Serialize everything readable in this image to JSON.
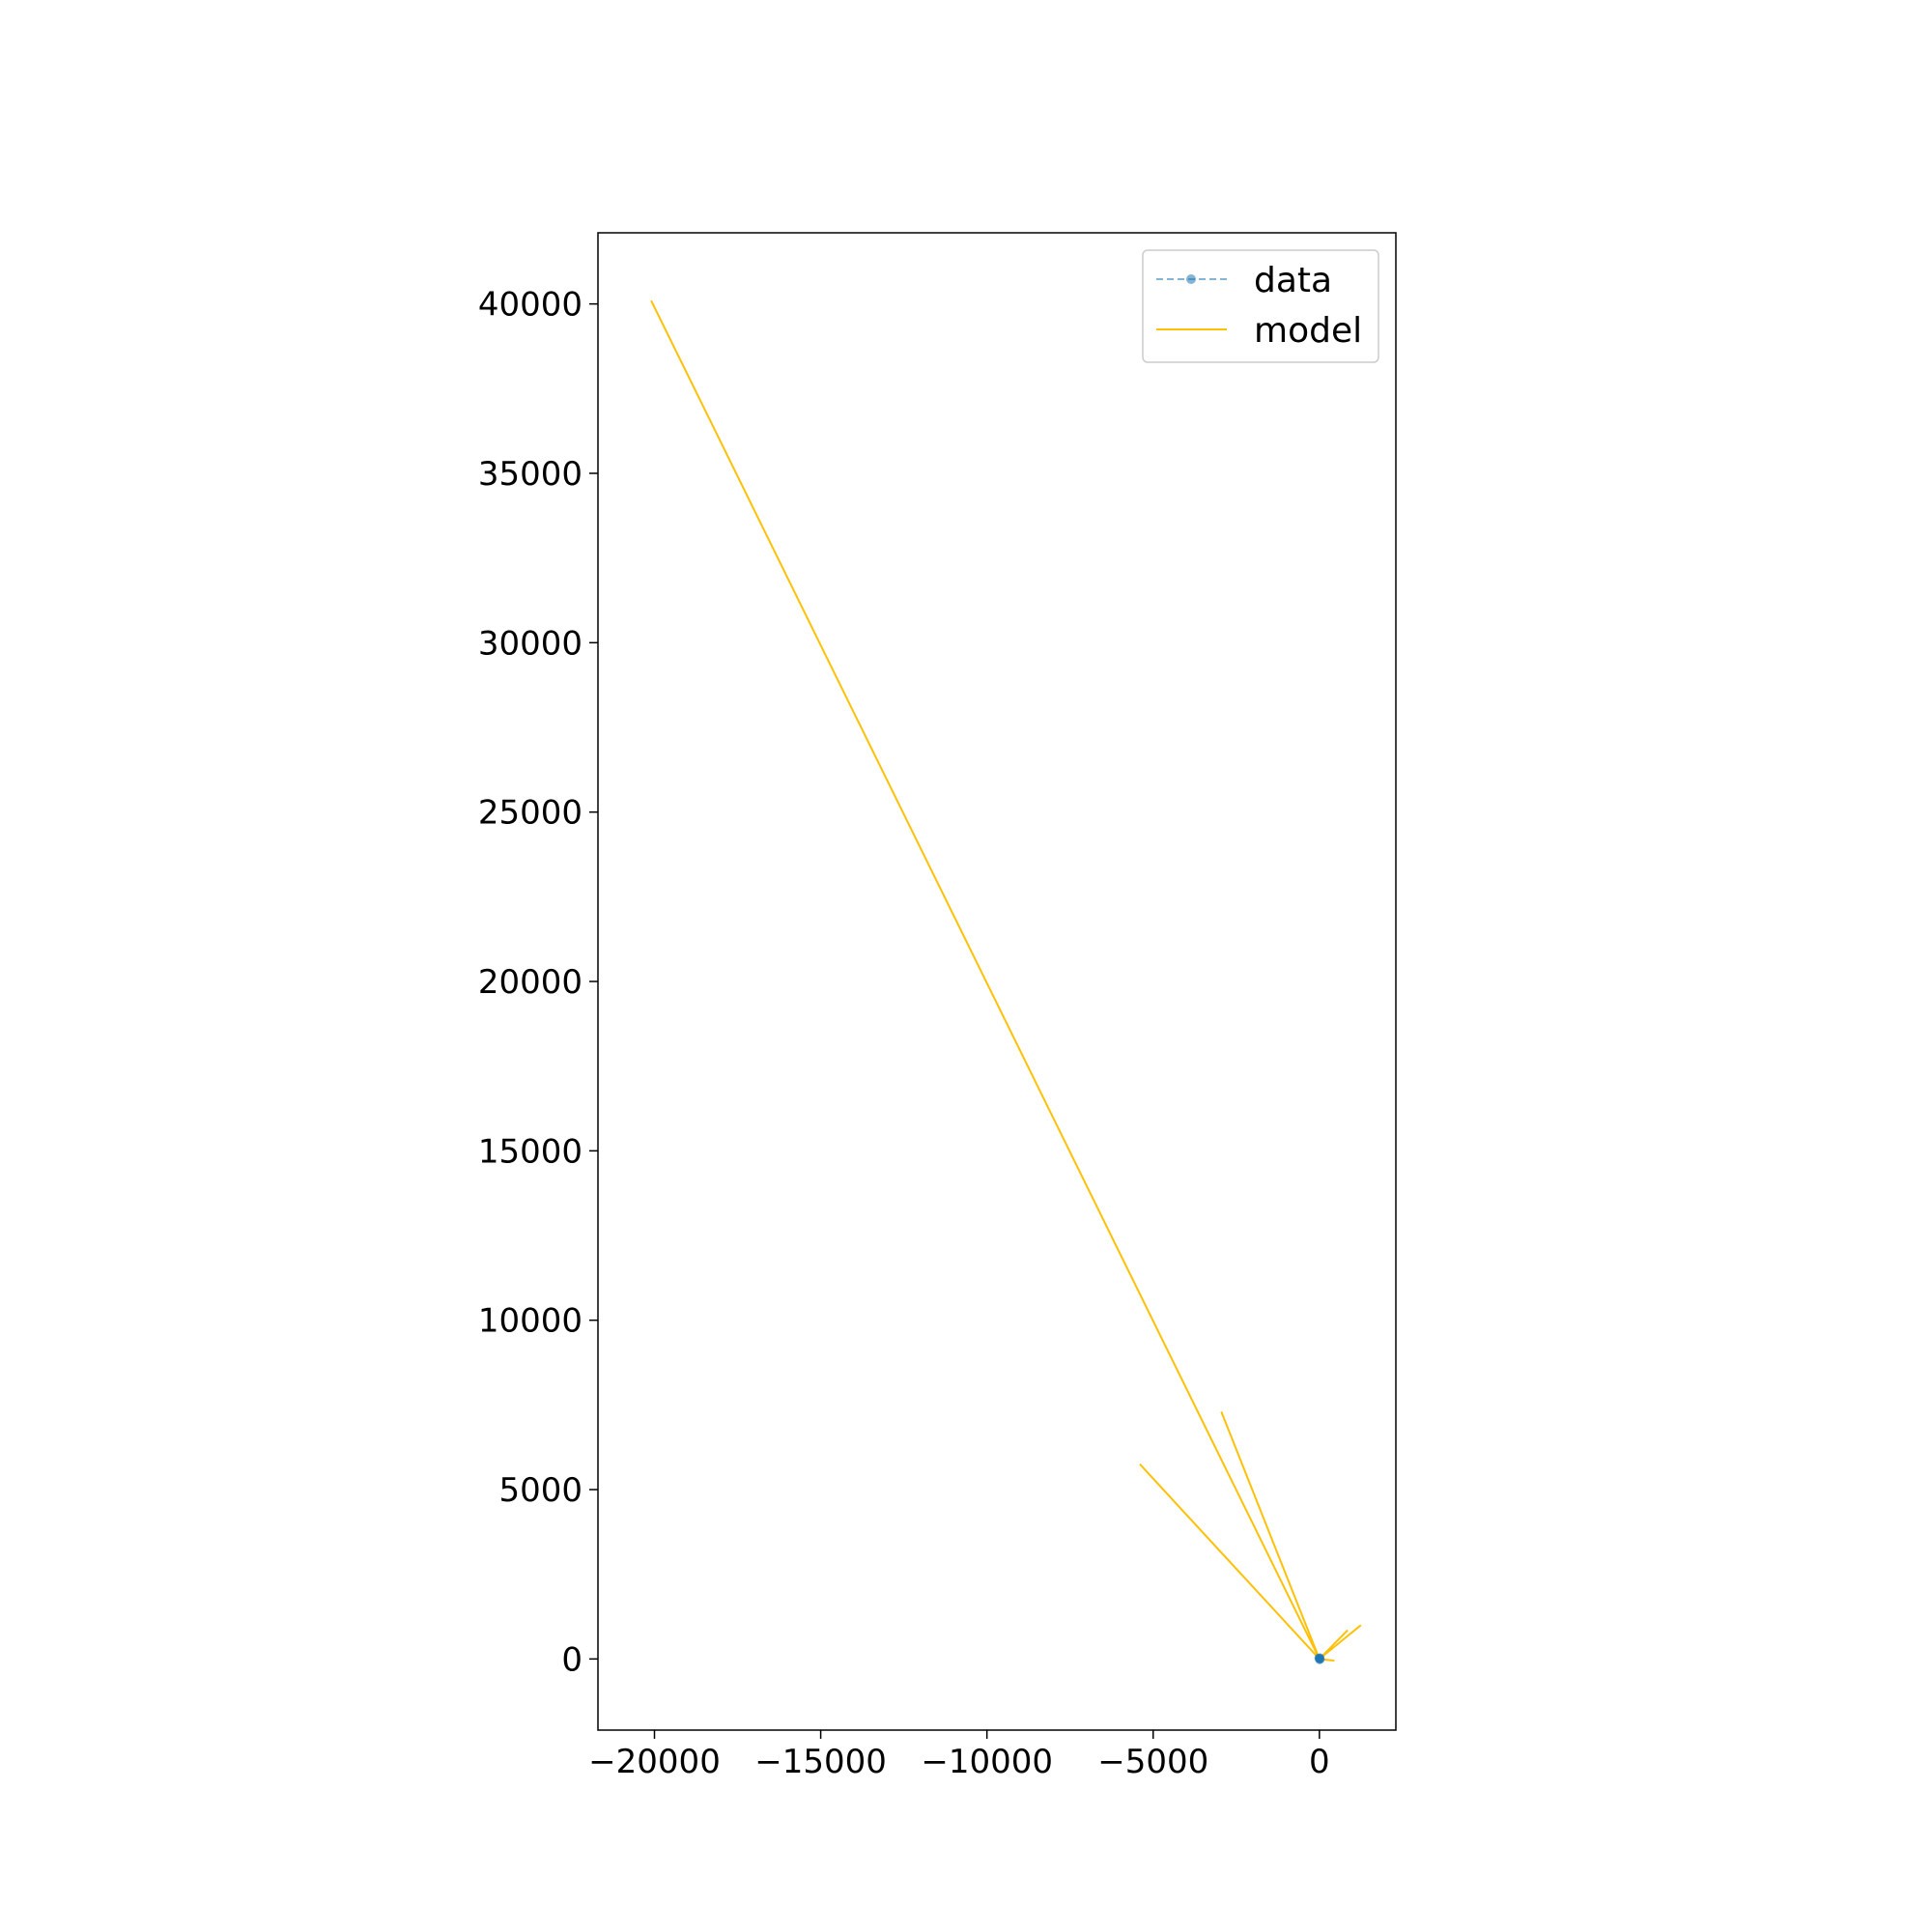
{
  "chart_data": {
    "type": "line",
    "title": "",
    "xlabel": "",
    "ylabel": "",
    "xlim": [
      -21700,
      2300
    ],
    "ylim": [
      -2100,
      42100
    ],
    "grid": false,
    "legend_position": "upper-right",
    "x_ticks": [
      {
        "value": -20000,
        "label": "−20000"
      },
      {
        "value": -15000,
        "label": "−15000"
      },
      {
        "value": -10000,
        "label": "−10000"
      },
      {
        "value": -5000,
        "label": "−5000"
      },
      {
        "value": 0,
        "label": "0"
      }
    ],
    "y_ticks": [
      {
        "value": 0,
        "label": "0"
      },
      {
        "value": 5000,
        "label": "5000"
      },
      {
        "value": 10000,
        "label": "10000"
      },
      {
        "value": 15000,
        "label": "15000"
      },
      {
        "value": 20000,
        "label": "20000"
      },
      {
        "value": 25000,
        "label": "25000"
      },
      {
        "value": 30000,
        "label": "30000"
      },
      {
        "value": 35000,
        "label": "35000"
      },
      {
        "value": 40000,
        "label": "40000"
      }
    ],
    "series": [
      {
        "name": "data",
        "style": "dashed-with-markers",
        "color": "#1f77b4",
        "points": [
          [
            0,
            0
          ],
          [
            10,
            20
          ],
          [
            -20,
            30
          ],
          [
            30,
            -10
          ],
          [
            -10,
            15
          ],
          [
            20,
            40
          ],
          [
            5,
            -25
          ]
        ]
      },
      {
        "name": "model",
        "style": "solid",
        "color": "#ffc107",
        "points": [
          [
            -20100,
            40100
          ],
          [
            0,
            0
          ],
          [
            -2950,
            7300
          ],
          [
            0,
            0
          ],
          [
            -5400,
            5750
          ],
          [
            0,
            0
          ],
          [
            850,
            850
          ],
          [
            0,
            0
          ],
          [
            1250,
            1000
          ],
          [
            0,
            0
          ],
          [
            450,
            -50
          ],
          [
            0,
            0
          ]
        ]
      }
    ]
  }
}
